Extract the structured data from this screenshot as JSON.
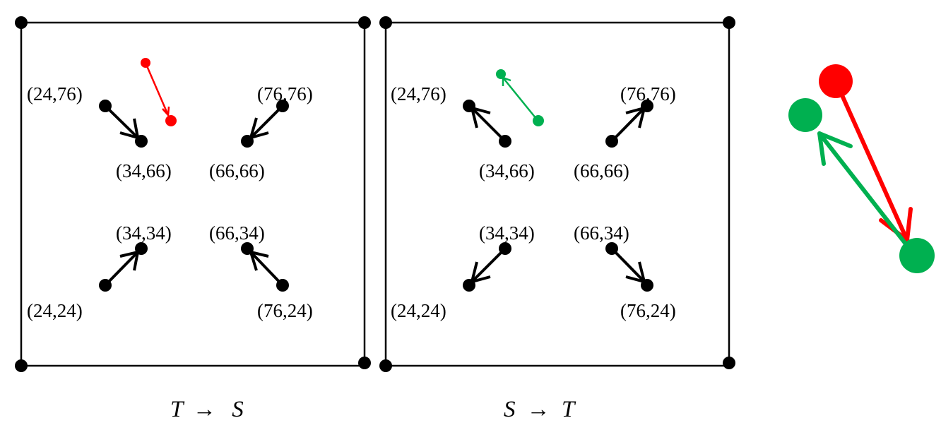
{
  "colors": {
    "ink": "#000000",
    "red": "#ff0000",
    "green": "#00b050"
  },
  "panels": [
    {
      "id": "t-to-s",
      "caption": {
        "from": "T",
        "arrow": "→",
        "to": "S"
      },
      "points": [
        {
          "label": "(24,76)",
          "from": [
            24,
            76
          ],
          "to": [
            34,
            66
          ]
        },
        {
          "label": "(34,66)",
          "from": null,
          "to": null
        },
        {
          "label": "(76,76)",
          "from": [
            76,
            76
          ],
          "to": [
            66,
            66
          ]
        },
        {
          "label": "(66,66)",
          "from": null,
          "to": null
        },
        {
          "label": "(34,34)",
          "from": null,
          "to": null
        },
        {
          "label": "(24,24)",
          "from": [
            24,
            24
          ],
          "to": [
            34,
            34
          ]
        },
        {
          "label": "(66,34)",
          "from": null,
          "to": null
        },
        {
          "label": "(76,24)",
          "from": [
            76,
            24
          ],
          "to": [
            66,
            34
          ]
        }
      ],
      "highlight": {
        "color": "red",
        "from": [
          35,
          85
        ],
        "to": [
          43,
          69
        ]
      }
    },
    {
      "id": "s-to-t",
      "caption": {
        "from": "S",
        "arrow": "→",
        "to": "T"
      },
      "points": [
        {
          "label": "(24,76)",
          "from": [
            34,
            66
          ],
          "to": [
            24,
            76
          ]
        },
        {
          "label": "(34,66)",
          "from": null,
          "to": null
        },
        {
          "label": "(76,76)",
          "from": [
            66,
            66
          ],
          "to": [
            76,
            76
          ]
        },
        {
          "label": "(66,66)",
          "from": null,
          "to": null
        },
        {
          "label": "(34,34)",
          "from": null,
          "to": null
        },
        {
          "label": "(24,24)",
          "from": [
            34,
            34
          ],
          "to": [
            24,
            24
          ]
        },
        {
          "label": "(66,34)",
          "from": null,
          "to": null
        },
        {
          "label": "(76,24)",
          "from": [
            66,
            34
          ],
          "to": [
            76,
            24
          ]
        }
      ],
      "highlight": {
        "color": "green",
        "from": [
          44,
          70
        ],
        "to": [
          33,
          86
        ]
      }
    }
  ],
  "zoom_inset": {
    "red_arrow": "red",
    "green_arrow": "green"
  }
}
